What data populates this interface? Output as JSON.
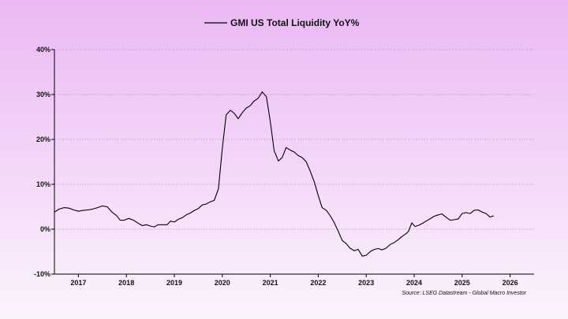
{
  "chart_data": {
    "type": "line",
    "title": "GMI US Total Liquidity YoY%",
    "source": "Source: LSEG Datastream - Global Macro Investor",
    "legend_position": "top-center",
    "grid": "horizontal-dotted",
    "xlim": [
      2016.5,
      2026.5
    ],
    "ylim": [
      -10,
      40
    ],
    "y_ticks": [
      {
        "value": 40,
        "label": "40%"
      },
      {
        "value": 30,
        "label": "30%"
      },
      {
        "value": 20,
        "label": "20%"
      },
      {
        "value": 10,
        "label": "10%"
      },
      {
        "value": 0,
        "label": "0%"
      },
      {
        "value": -10,
        "label": "-10%"
      }
    ],
    "x_labels": [
      {
        "value": 2017,
        "label": "2017"
      },
      {
        "value": 2018,
        "label": "2018"
      },
      {
        "value": 2019,
        "label": "2019"
      },
      {
        "value": 2020,
        "label": "2020"
      },
      {
        "value": 2021,
        "label": "2021"
      },
      {
        "value": 2022,
        "label": "2022"
      },
      {
        "value": 2023,
        "label": "2023"
      },
      {
        "value": 2024,
        "label": "2024"
      },
      {
        "value": 2025,
        "label": "2025"
      },
      {
        "value": 2026,
        "label": "2026"
      }
    ],
    "series": [
      {
        "name": "GMI US Total Liquidity YoY%",
        "color": "#000000",
        "points": [
          [
            2016.5,
            3.8
          ],
          [
            2016.6,
            4.5
          ],
          [
            2016.7,
            4.8
          ],
          [
            2016.8,
            4.7
          ],
          [
            2016.9,
            4.3
          ],
          [
            2017.0,
            4.0
          ],
          [
            2017.1,
            4.2
          ],
          [
            2017.2,
            4.3
          ],
          [
            2017.3,
            4.5
          ],
          [
            2017.4,
            4.8
          ],
          [
            2017.5,
            5.2
          ],
          [
            2017.6,
            5.0
          ],
          [
            2017.7,
            3.8
          ],
          [
            2017.8,
            3.0
          ],
          [
            2017.87,
            2.0
          ],
          [
            2017.95,
            2.0
          ],
          [
            2018.05,
            2.4
          ],
          [
            2018.15,
            2.0
          ],
          [
            2018.25,
            1.3
          ],
          [
            2018.33,
            0.8
          ],
          [
            2018.42,
            1.0
          ],
          [
            2018.5,
            0.7
          ],
          [
            2018.58,
            0.5
          ],
          [
            2018.66,
            1.0
          ],
          [
            2018.75,
            1.0
          ],
          [
            2018.85,
            1.0
          ],
          [
            2018.92,
            1.8
          ],
          [
            2019.0,
            1.6
          ],
          [
            2019.08,
            2.2
          ],
          [
            2019.17,
            2.6
          ],
          [
            2019.25,
            3.2
          ],
          [
            2019.33,
            3.6
          ],
          [
            2019.42,
            4.2
          ],
          [
            2019.5,
            4.6
          ],
          [
            2019.58,
            5.4
          ],
          [
            2019.66,
            5.6
          ],
          [
            2019.75,
            6.1
          ],
          [
            2019.83,
            6.4
          ],
          [
            2019.92,
            9.0
          ],
          [
            2020.0,
            18.0
          ],
          [
            2020.08,
            25.5
          ],
          [
            2020.17,
            26.5
          ],
          [
            2020.25,
            25.8
          ],
          [
            2020.33,
            24.6
          ],
          [
            2020.42,
            26.0
          ],
          [
            2020.5,
            27.0
          ],
          [
            2020.58,
            27.5
          ],
          [
            2020.66,
            28.5
          ],
          [
            2020.75,
            29.2
          ],
          [
            2020.83,
            30.6
          ],
          [
            2020.92,
            29.5
          ],
          [
            2021.0,
            24.0
          ],
          [
            2021.08,
            17.5
          ],
          [
            2021.17,
            15.2
          ],
          [
            2021.25,
            16.0
          ],
          [
            2021.33,
            18.2
          ],
          [
            2021.42,
            17.6
          ],
          [
            2021.5,
            17.2
          ],
          [
            2021.58,
            16.4
          ],
          [
            2021.66,
            16.0
          ],
          [
            2021.75,
            15.0
          ],
          [
            2021.83,
            13.0
          ],
          [
            2021.92,
            10.5
          ],
          [
            2022.0,
            7.5
          ],
          [
            2022.08,
            4.8
          ],
          [
            2022.17,
            4.2
          ],
          [
            2022.25,
            3.0
          ],
          [
            2022.33,
            1.5
          ],
          [
            2022.42,
            -0.5
          ],
          [
            2022.5,
            -2.5
          ],
          [
            2022.58,
            -3.2
          ],
          [
            2022.66,
            -4.2
          ],
          [
            2022.75,
            -4.8
          ],
          [
            2022.83,
            -4.5
          ],
          [
            2022.92,
            -6.0
          ],
          [
            2023.0,
            -5.8
          ],
          [
            2023.08,
            -5.0
          ],
          [
            2023.17,
            -4.5
          ],
          [
            2023.25,
            -4.3
          ],
          [
            2023.33,
            -4.6
          ],
          [
            2023.42,
            -4.2
          ],
          [
            2023.5,
            -3.4
          ],
          [
            2023.58,
            -3.0
          ],
          [
            2023.66,
            -2.4
          ],
          [
            2023.75,
            -1.6
          ],
          [
            2023.83,
            -1.0
          ],
          [
            2023.88,
            -0.5
          ],
          [
            2023.95,
            1.4
          ],
          [
            2024.02,
            0.6
          ],
          [
            2024.1,
            0.9
          ],
          [
            2024.17,
            1.3
          ],
          [
            2024.25,
            1.8
          ],
          [
            2024.33,
            2.3
          ],
          [
            2024.42,
            2.9
          ],
          [
            2024.5,
            3.2
          ],
          [
            2024.58,
            3.4
          ],
          [
            2024.66,
            2.7
          ],
          [
            2024.75,
            2.0
          ],
          [
            2024.83,
            2.1
          ],
          [
            2024.92,
            2.3
          ],
          [
            2025.0,
            3.5
          ],
          [
            2025.08,
            3.7
          ],
          [
            2025.17,
            3.5
          ],
          [
            2025.25,
            4.2
          ],
          [
            2025.33,
            4.3
          ],
          [
            2025.42,
            3.8
          ],
          [
            2025.5,
            3.5
          ],
          [
            2025.58,
            2.7
          ],
          [
            2025.66,
            3.0
          ]
        ]
      }
    ]
  }
}
